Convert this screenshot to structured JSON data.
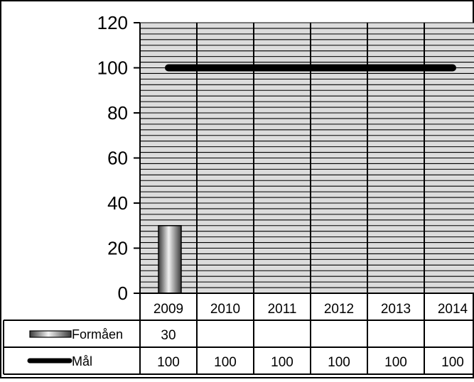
{
  "chart_data": {
    "type": "bar",
    "categories": [
      "2009",
      "2010",
      "2011",
      "2012",
      "2013",
      "2014"
    ],
    "series": [
      {
        "name": "Formåen",
        "kind": "bar",
        "values": [
          30,
          null,
          null,
          null,
          null,
          null
        ]
      },
      {
        "name": "Mål",
        "kind": "line",
        "values": [
          100,
          100,
          100,
          100,
          100,
          100
        ]
      }
    ],
    "ylim": [
      0,
      120
    ],
    "yticks": [
      0,
      20,
      40,
      60,
      80,
      100,
      120
    ],
    "grid": true,
    "legend": "data-table",
    "colors": {
      "plot_bg": "#dcdcdc",
      "grid": "#000000",
      "line": "#000000"
    }
  }
}
